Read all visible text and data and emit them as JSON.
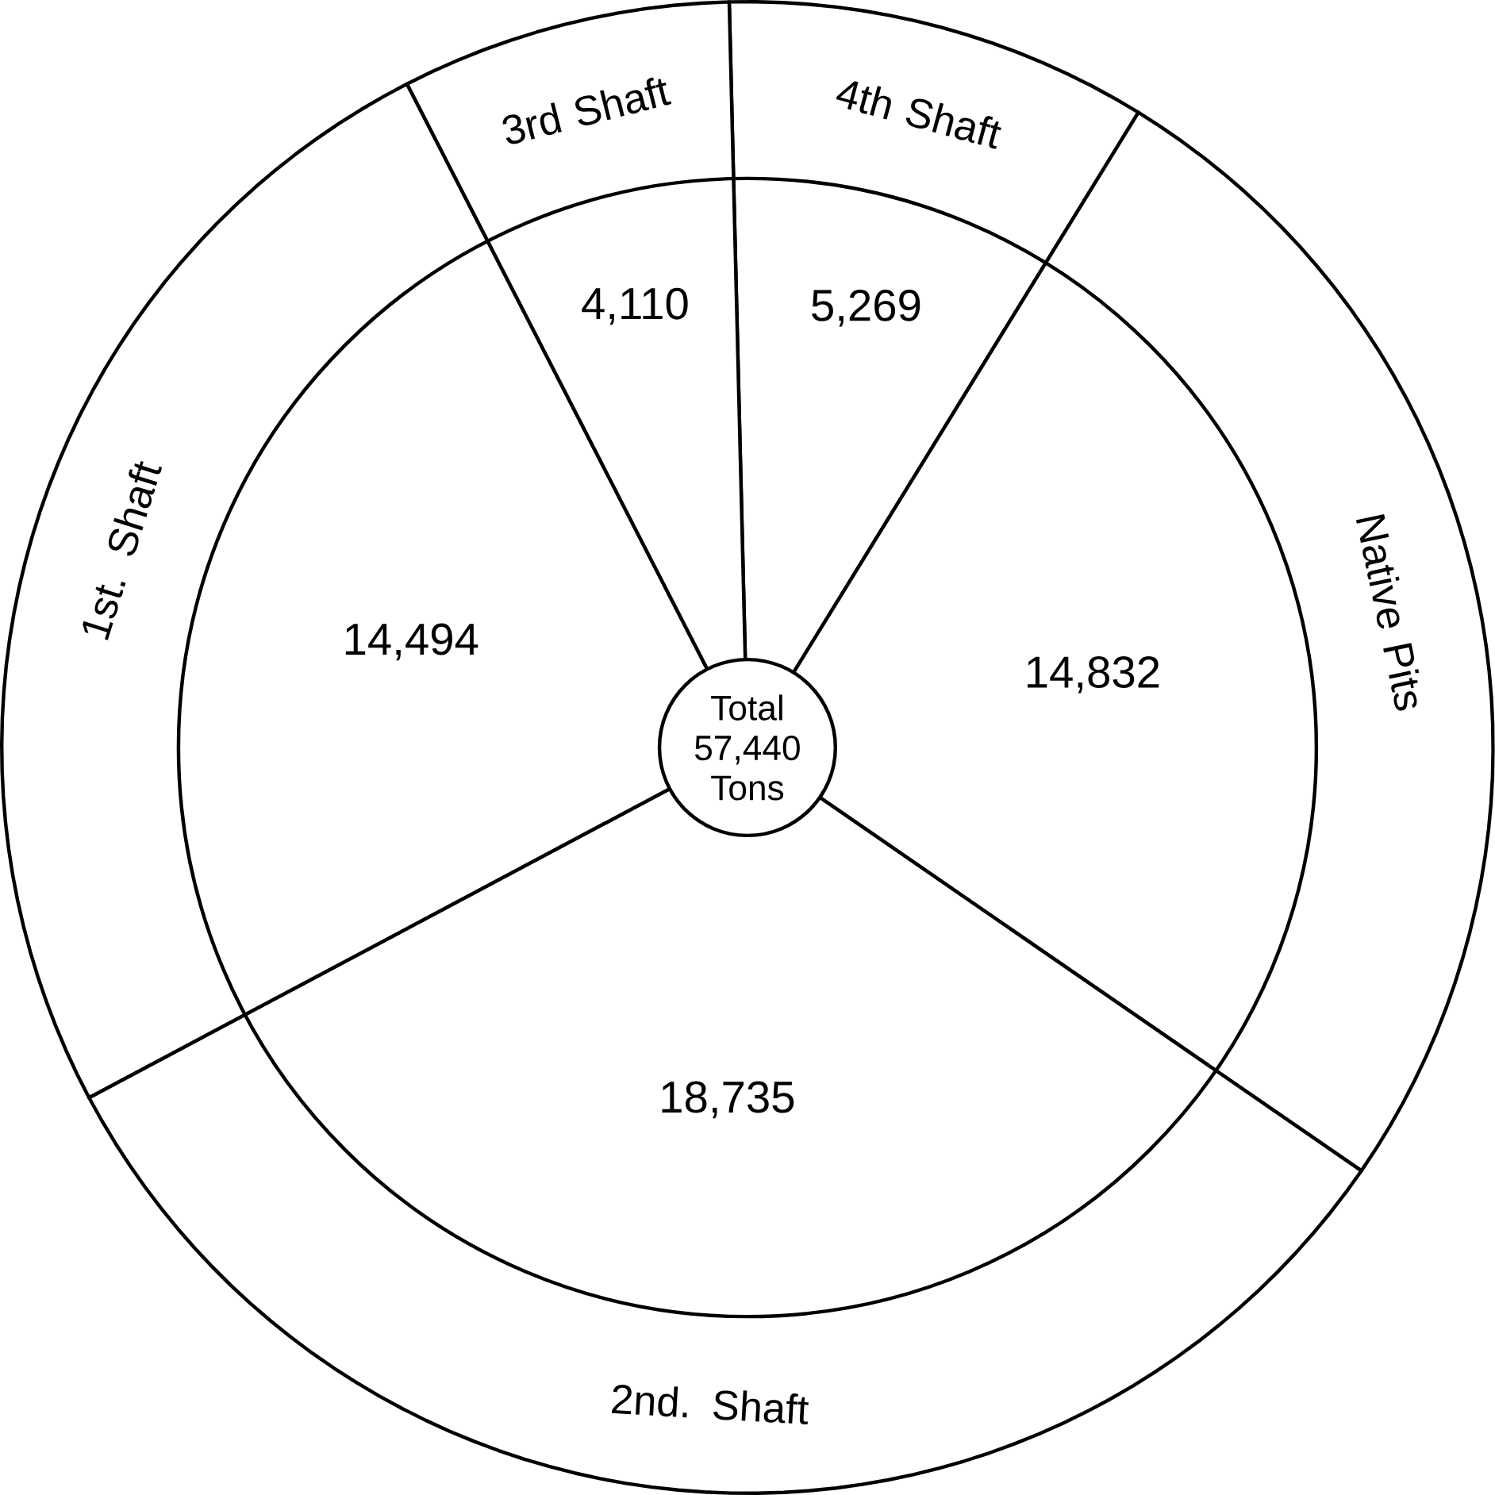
{
  "chart_data": {
    "type": "pie",
    "categories": [
      "4th Shaft",
      "Native Pits",
      "2nd. Shaft",
      "1st. Shaft",
      "3rd Shaft"
    ],
    "values": [
      5269,
      14832,
      18735,
      14494,
      4110
    ],
    "value_labels": [
      "5,269",
      "14,832",
      "18,735",
      "14,494",
      "4,110"
    ],
    "colors": [
      "#ffffff",
      "#ffffff",
      "#ffffff",
      "#ffffff",
      "#ffffff"
    ],
    "annotations": [
      "Total",
      "57,440",
      "Tons"
    ]
  }
}
